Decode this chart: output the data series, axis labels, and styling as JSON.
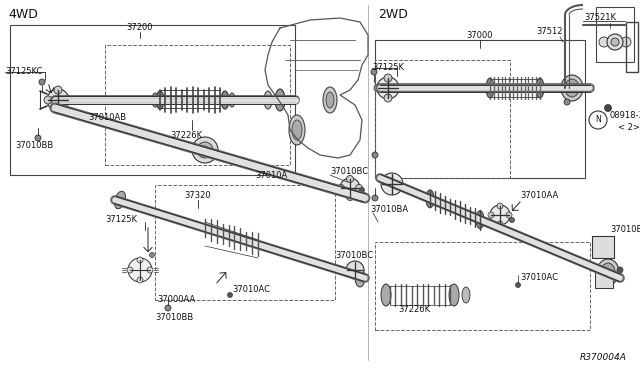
{
  "bg_color": "#ffffff",
  "line_color": "#222222",
  "text_color": "#111111",
  "label_4wd": "4WD",
  "label_2wd": "2WD",
  "ref_code": "R370004A",
  "figsize": [
    6.4,
    3.72
  ],
  "dpi": 100
}
